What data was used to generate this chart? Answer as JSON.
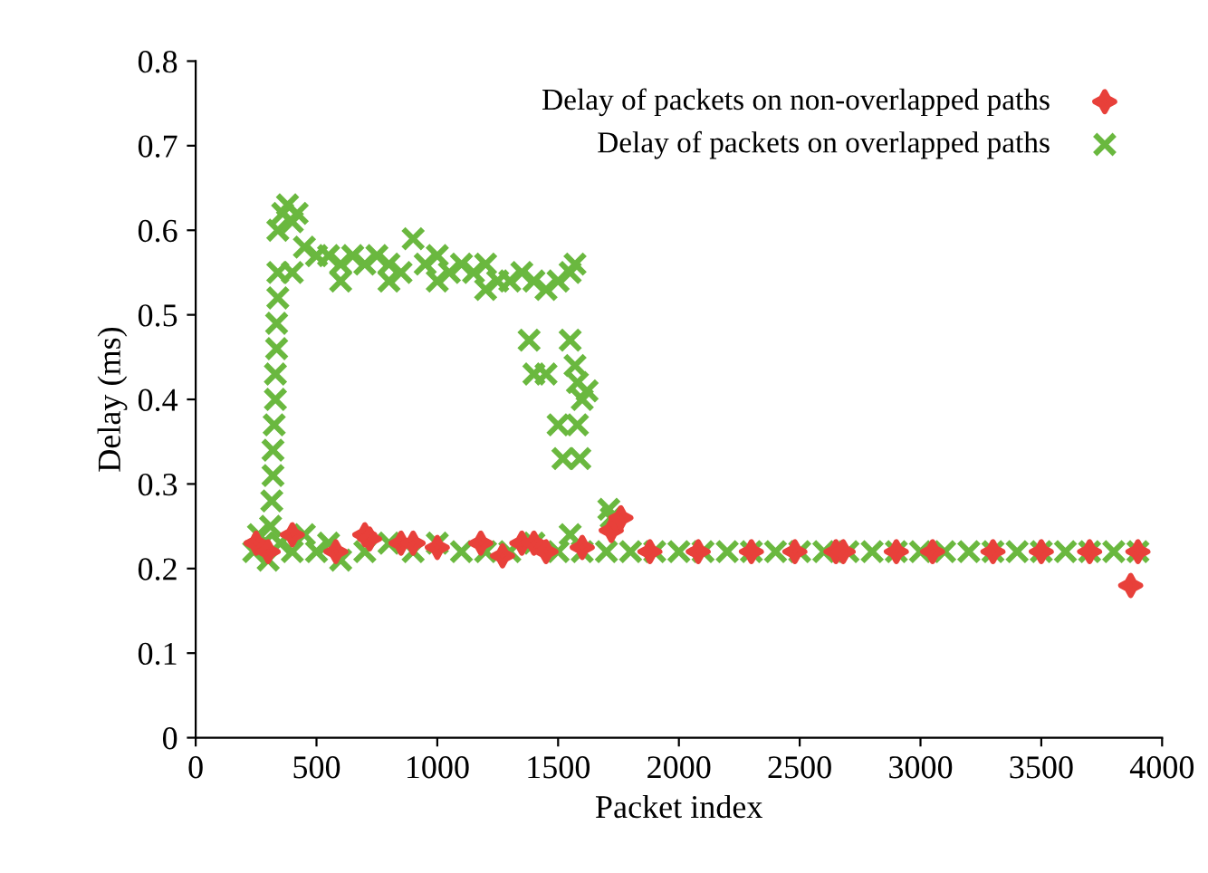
{
  "chart_data": {
    "type": "scatter",
    "xlabel": "Packet index",
    "ylabel": "Delay (ms)",
    "xlim": [
      0,
      4000
    ],
    "ylim": [
      0,
      0.8
    ],
    "xticks": [
      0,
      500,
      1000,
      1500,
      2000,
      2500,
      3000,
      3500,
      4000
    ],
    "yticks": [
      0,
      0.1,
      0.2,
      0.3,
      0.4,
      0.5,
      0.6,
      0.7,
      0.8
    ],
    "grid": false,
    "legend": "top right",
    "series": [
      {
        "name": "Delay of packets on non-overlapped paths",
        "color": "#e8403a",
        "marker": "star",
        "x": [
          250,
          300,
          400,
          580,
          700,
          720,
          850,
          900,
          1000,
          1180,
          1270,
          1350,
          1400,
          1450,
          1600,
          1720,
          1760,
          1880,
          2080,
          2300,
          2480,
          2650,
          2680,
          2900,
          3050,
          3300,
          3500,
          3700,
          3870,
          3900
        ],
        "values": [
          0.23,
          0.22,
          0.24,
          0.22,
          0.24,
          0.235,
          0.23,
          0.23,
          0.225,
          0.23,
          0.215,
          0.23,
          0.23,
          0.22,
          0.225,
          0.245,
          0.26,
          0.22,
          0.22,
          0.22,
          0.22,
          0.22,
          0.22,
          0.22,
          0.22,
          0.22,
          0.22,
          0.22,
          0.18,
          0.22
        ]
      },
      {
        "name": "Delay of packets on overlapped paths",
        "color": "#6ab83f",
        "marker": "cross",
        "x": [
          240,
          260,
          280,
          300,
          350,
          400,
          450,
          500,
          550,
          600,
          700,
          800,
          900,
          1000,
          1100,
          1200,
          1300,
          1400,
          1500,
          1550,
          1600,
          1700,
          1800,
          1900,
          2000,
          2100,
          2200,
          2300,
          2400,
          2500,
          2600,
          2700,
          2800,
          2900,
          3000,
          3100,
          3200,
          3300,
          3400,
          3500,
          3600,
          3700,
          3800,
          3900,
          310,
          315,
          320,
          320,
          325,
          330,
          330,
          335,
          335,
          340,
          340,
          340,
          360,
          380,
          400,
          420,
          450,
          500,
          550,
          600,
          650,
          700,
          750,
          800,
          850,
          900,
          950,
          1000,
          1050,
          1100,
          1150,
          1200,
          1250,
          1300,
          1350,
          1400,
          1450,
          1500,
          1550,
          1570,
          400,
          600,
          800,
          1000,
          1200,
          1380,
          1550,
          1400,
          1450,
          1570,
          1580,
          1600,
          1620,
          1500,
          1580,
          1520,
          1590,
          1720,
          1710
        ],
        "values": [
          0.22,
          0.24,
          0.23,
          0.21,
          0.23,
          0.22,
          0.24,
          0.22,
          0.23,
          0.21,
          0.22,
          0.23,
          0.22,
          0.23,
          0.22,
          0.22,
          0.22,
          0.23,
          0.22,
          0.24,
          0.22,
          0.22,
          0.22,
          0.22,
          0.22,
          0.22,
          0.22,
          0.22,
          0.22,
          0.22,
          0.22,
          0.22,
          0.22,
          0.22,
          0.22,
          0.22,
          0.22,
          0.22,
          0.22,
          0.22,
          0.22,
          0.22,
          0.22,
          0.22,
          0.25,
          0.28,
          0.31,
          0.34,
          0.37,
          0.4,
          0.43,
          0.46,
          0.49,
          0.52,
          0.55,
          0.6,
          0.62,
          0.63,
          0.61,
          0.62,
          0.58,
          0.57,
          0.57,
          0.56,
          0.57,
          0.56,
          0.57,
          0.56,
          0.55,
          0.59,
          0.56,
          0.57,
          0.55,
          0.56,
          0.55,
          0.56,
          0.54,
          0.54,
          0.55,
          0.54,
          0.53,
          0.54,
          0.55,
          0.56,
          0.55,
          0.54,
          0.54,
          0.54,
          0.53,
          0.47,
          0.47,
          0.43,
          0.43,
          0.44,
          0.42,
          0.4,
          0.41,
          0.37,
          0.37,
          0.33,
          0.33,
          0.26,
          0.27
        ]
      }
    ]
  }
}
